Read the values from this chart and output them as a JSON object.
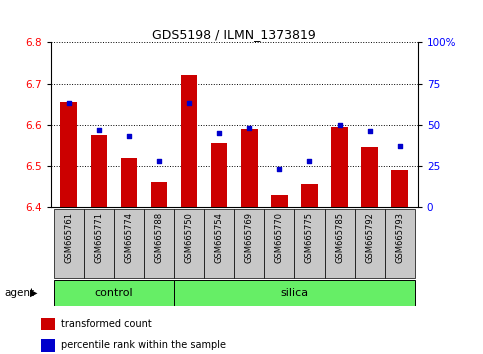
{
  "title": "GDS5198 / ILMN_1373819",
  "samples": [
    "GSM665761",
    "GSM665771",
    "GSM665774",
    "GSM665788",
    "GSM665750",
    "GSM665754",
    "GSM665769",
    "GSM665770",
    "GSM665775",
    "GSM665785",
    "GSM665792",
    "GSM665793"
  ],
  "groups": [
    "control",
    "control",
    "control",
    "control",
    "silica",
    "silica",
    "silica",
    "silica",
    "silica",
    "silica",
    "silica",
    "silica"
  ],
  "transformed_counts": [
    6.655,
    6.575,
    6.52,
    6.46,
    6.72,
    6.555,
    6.59,
    6.43,
    6.455,
    6.595,
    6.545,
    6.49
  ],
  "percentile_ranks": [
    63,
    47,
    43,
    28,
    63,
    45,
    48,
    23,
    28,
    50,
    46,
    37
  ],
  "ylim_left": [
    6.4,
    6.8
  ],
  "ylim_right": [
    0,
    100
  ],
  "yticks_left": [
    6.4,
    6.5,
    6.6,
    6.7,
    6.8
  ],
  "yticks_right": [
    0,
    25,
    50,
    75,
    100
  ],
  "ytick_labels_right": [
    "0",
    "25",
    "50",
    "75",
    "100%"
  ],
  "bar_color": "#cc0000",
  "dot_color": "#0000cc",
  "bar_width": 0.55,
  "group_band_color": "#66ee66",
  "tick_bg_color": "#c8c8c8",
  "agent_label": "agent",
  "legend_bar_label": "transformed count",
  "legend_dot_label": "percentile rank within the sample",
  "ybaseline": 6.4,
  "n_control": 4,
  "n_silica": 8
}
